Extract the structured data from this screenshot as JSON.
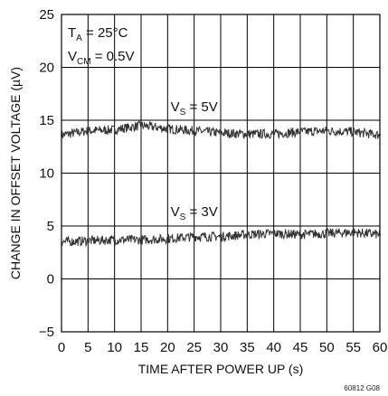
{
  "chart_data": {
    "type": "line",
    "xlabel": "TIME AFTER POWER UP (s)",
    "ylabel": "CHANGE IN OFFSET VOLTAGE (µV)",
    "xlim": [
      0,
      60
    ],
    "ylim": [
      -5,
      25
    ],
    "xticks": [
      "0",
      "5",
      "10",
      "15",
      "20",
      "25",
      "30",
      "35",
      "40",
      "45",
      "50",
      "55",
      "60"
    ],
    "yticks": [
      "−5",
      "0",
      "5",
      "10",
      "15",
      "20",
      "25"
    ],
    "grid": true,
    "conditions": {
      "ta": {
        "main": "T",
        "sub": "A",
        "rest": " = 25°C"
      },
      "vcm": {
        "main": "V",
        "sub": "CM",
        "rest": " = 0.5V"
      }
    },
    "series": [
      {
        "label": {
          "main": "V",
          "sub": "S",
          "rest": " = 5V"
        },
        "x": [
          0,
          5,
          10,
          15,
          20,
          25,
          30,
          35,
          40,
          45,
          50,
          55,
          60
        ],
        "y": [
          13.6,
          14.0,
          14.1,
          14.5,
          14.2,
          14.0,
          13.8,
          13.7,
          13.7,
          13.9,
          14.0,
          13.9,
          13.6
        ]
      },
      {
        "label": {
          "main": "V",
          "sub": "S",
          "rest": " = 3V"
        },
        "x": [
          0,
          5,
          10,
          15,
          20,
          25,
          30,
          35,
          40,
          45,
          50,
          55,
          60
        ],
        "y": [
          3.5,
          3.6,
          3.7,
          3.7,
          3.8,
          4.0,
          4.0,
          4.2,
          4.3,
          4.2,
          4.3,
          4.4,
          4.2
        ]
      }
    ],
    "figure_id": "60812 G08",
    "line_color": "#333333",
    "grid_color": "#000000"
  }
}
